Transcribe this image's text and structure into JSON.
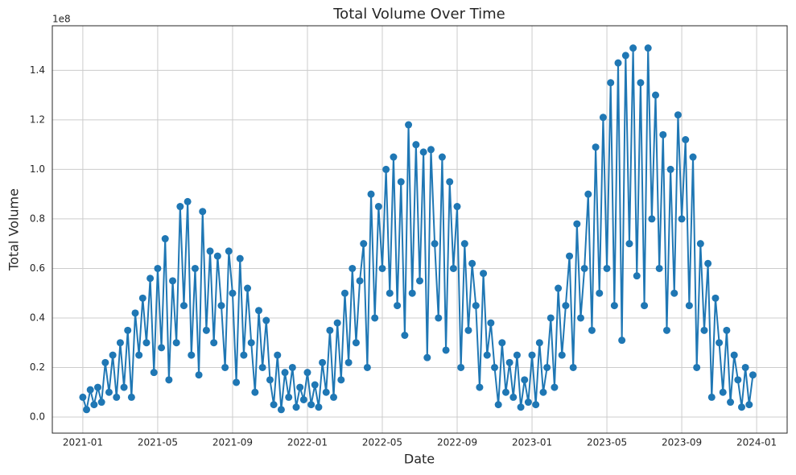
{
  "chart_data": {
    "type": "line",
    "title": "Total Volume Over Time",
    "x_label": "Date",
    "y_label": "Total Volume",
    "y_offset_label": "1e8",
    "color": "#1f77b4",
    "grid": true,
    "xlim": [
      -1.63,
      37.63
    ],
    "xticks": [
      {
        "value": 0,
        "label": "2021-01"
      },
      {
        "value": 4,
        "label": "2021-05"
      },
      {
        "value": 8,
        "label": "2021-09"
      },
      {
        "value": 12,
        "label": "2022-01"
      },
      {
        "value": 16,
        "label": "2022-05"
      },
      {
        "value": 20,
        "label": "2022-09"
      },
      {
        "value": 24,
        "label": "2023-01"
      },
      {
        "value": 28,
        "label": "2023-05"
      },
      {
        "value": 32,
        "label": "2023-09"
      },
      {
        "value": 36,
        "label": "2024-01"
      }
    ],
    "ylim": [
      -0.065,
      1.58
    ],
    "yticks": [
      {
        "value": 0,
        "label": "0.0"
      },
      0.2,
      0.4,
      0.6,
      0.8,
      {
        "value": 1,
        "label": "1.0"
      },
      1.2,
      1.4
    ],
    "x": [
      0,
      0.2,
      0.4,
      0.6,
      0.8,
      1,
      1.2,
      1.4,
      1.6,
      1.8,
      2,
      2.2,
      2.4,
      2.6,
      2.8,
      3,
      3.2,
      3.4,
      3.6,
      3.8,
      4,
      4.2,
      4.4,
      4.6,
      4.8,
      5,
      5.2,
      5.4,
      5.6,
      5.8,
      6,
      6.2,
      6.4,
      6.6,
      6.8,
      7,
      7.2,
      7.4,
      7.6,
      7.8,
      8,
      8.2,
      8.4,
      8.6,
      8.8,
      9,
      9.2,
      9.4,
      9.6,
      9.8,
      10,
      10.2,
      10.4,
      10.6,
      10.8,
      11,
      11.2,
      11.4,
      11.6,
      11.8,
      12,
      12.2,
      12.4,
      12.6,
      12.8,
      13,
      13.2,
      13.4,
      13.6,
      13.8,
      14,
      14.2,
      14.4,
      14.6,
      14.8,
      15,
      15.2,
      15.4,
      15.6,
      15.8,
      16,
      16.2,
      16.4,
      16.6,
      16.8,
      17,
      17.2,
      17.4,
      17.6,
      17.8,
      18,
      18.2,
      18.4,
      18.6,
      18.8,
      19,
      19.2,
      19.4,
      19.6,
      19.8,
      20,
      20.2,
      20.4,
      20.6,
      20.8,
      21,
      21.2,
      21.4,
      21.6,
      21.8,
      22,
      22.2,
      22.4,
      22.6,
      22.8,
      23,
      23.2,
      23.4,
      23.6,
      23.8,
      24,
      24.2,
      24.4,
      24.6,
      24.8,
      25,
      25.2,
      25.4,
      25.6,
      25.8,
      26,
      26.2,
      26.4,
      26.6,
      26.8,
      27,
      27.2,
      27.4,
      27.6,
      27.8,
      28,
      28.2,
      28.4,
      28.6,
      28.8,
      29,
      29.2,
      29.4,
      29.6,
      29.8,
      30,
      30.2,
      30.4,
      30.6,
      30.8,
      31,
      31.2,
      31.4,
      31.6,
      31.8,
      32,
      32.2,
      32.4,
      32.6,
      32.8,
      33,
      33.2,
      33.4,
      33.6,
      33.8,
      34,
      34.2,
      34.4,
      34.6,
      34.8,
      35,
      35.2,
      35.4,
      35.6,
      35.8
    ],
    "values": [
      0.08,
      0.03,
      0.11,
      0.05,
      0.12,
      0.06,
      0.22,
      0.1,
      0.25,
      0.08,
      0.3,
      0.12,
      0.35,
      0.08,
      0.42,
      0.25,
      0.48,
      0.3,
      0.56,
      0.18,
      0.6,
      0.28,
      0.72,
      0.15,
      0.55,
      0.3,
      0.85,
      0.45,
      0.87,
      0.25,
      0.6,
      0.17,
      0.83,
      0.35,
      0.67,
      0.3,
      0.65,
      0.45,
      0.2,
      0.67,
      0.5,
      0.14,
      0.64,
      0.25,
      0.52,
      0.3,
      0.1,
      0.43,
      0.2,
      0.39,
      0.15,
      0.05,
      0.25,
      0.03,
      0.18,
      0.08,
      0.2,
      0.04,
      0.12,
      0.07,
      0.18,
      0.05,
      0.13,
      0.04,
      0.22,
      0.1,
      0.35,
      0.08,
      0.38,
      0.15,
      0.5,
      0.22,
      0.6,
      0.3,
      0.55,
      0.7,
      0.2,
      0.9,
      0.4,
      0.85,
      0.6,
      1.0,
      0.5,
      1.05,
      0.45,
      0.95,
      0.33,
      1.18,
      0.5,
      1.1,
      0.55,
      1.07,
      0.24,
      1.08,
      0.7,
      0.4,
      1.05,
      0.27,
      0.95,
      0.6,
      0.85,
      0.2,
      0.7,
      0.35,
      0.62,
      0.45,
      0.12,
      0.58,
      0.25,
      0.38,
      0.2,
      0.05,
      0.3,
      0.1,
      0.22,
      0.08,
      0.25,
      0.04,
      0.15,
      0.06,
      0.25,
      0.05,
      0.3,
      0.1,
      0.2,
      0.4,
      0.12,
      0.52,
      0.25,
      0.45,
      0.65,
      0.2,
      0.78,
      0.4,
      0.6,
      0.9,
      0.35,
      1.09,
      0.5,
      1.21,
      0.6,
      1.35,
      0.45,
      1.43,
      0.31,
      1.46,
      0.7,
      1.49,
      0.57,
      1.35,
      0.45,
      1.49,
      0.8,
      1.3,
      0.6,
      1.14,
      0.35,
      1.0,
      0.5,
      1.22,
      0.8,
      1.12,
      0.45,
      1.05,
      0.2,
      0.7,
      0.35,
      0.62,
      0.08,
      0.48,
      0.3,
      0.1,
      0.35,
      0.06,
      0.25,
      0.15,
      0.04,
      0.2,
      0.05,
      0.17
    ]
  }
}
